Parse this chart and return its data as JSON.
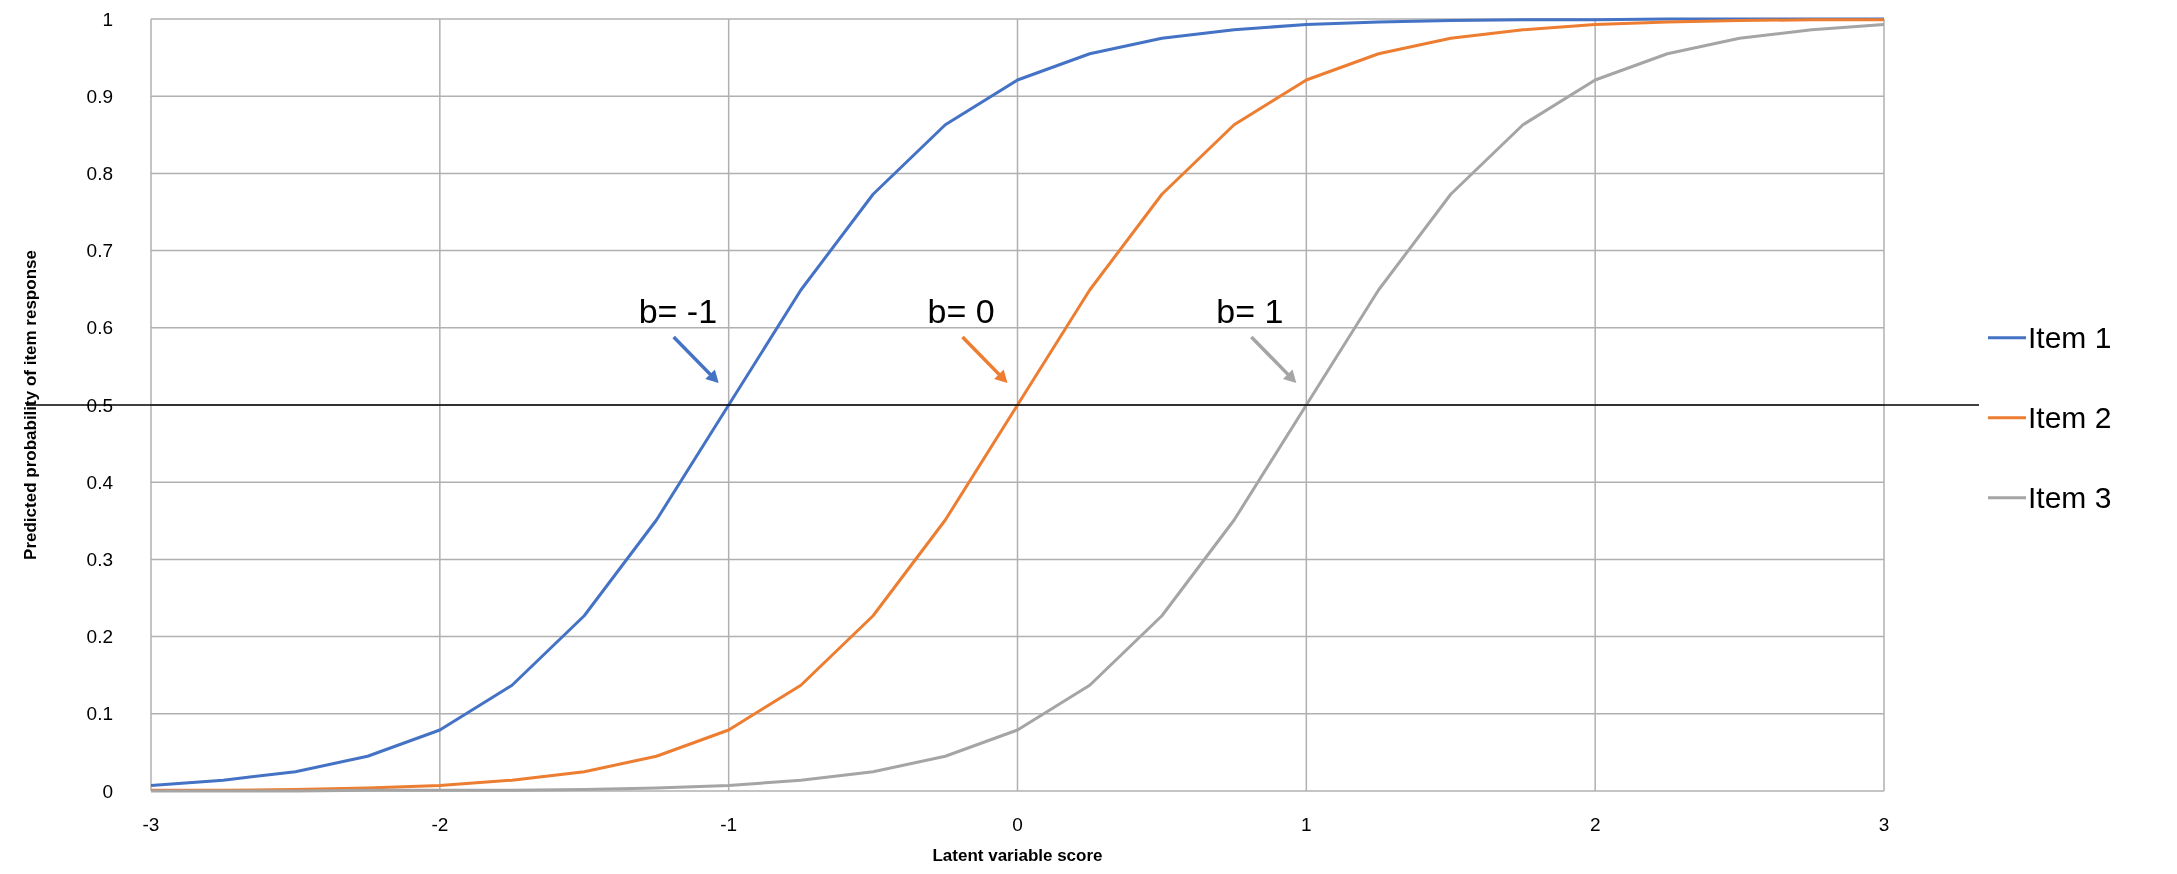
{
  "chart_data": {
    "type": "line",
    "xlabel": "Latent variable score",
    "ylabel": "Predicted probability of item response",
    "x": [
      -3,
      -2.75,
      -2.5,
      -2.25,
      -2,
      -1.75,
      -1.5,
      -1.25,
      -1,
      -0.75,
      -0.5,
      -0.25,
      0,
      0.25,
      0.5,
      0.75,
      1,
      1.25,
      1.5,
      1.75,
      2,
      2.25,
      2.5,
      2.75,
      3
    ],
    "series": [
      {
        "name": "Item 1",
        "color": "#4472c4",
        "values": [
          0.007,
          0.014,
          0.025,
          0.045,
          0.079,
          0.137,
          0.227,
          0.351,
          0.5,
          0.649,
          0.773,
          0.863,
          0.921,
          0.955,
          0.975,
          0.986,
          0.993,
          0.996,
          0.998,
          0.999,
          0.999,
          1,
          1,
          1,
          1
        ]
      },
      {
        "name": "Item 2",
        "color": "#ed7d31",
        "values": [
          0.001,
          0.001,
          0.002,
          0.004,
          0.007,
          0.014,
          0.025,
          0.045,
          0.079,
          0.137,
          0.227,
          0.351,
          0.5,
          0.649,
          0.773,
          0.863,
          0.921,
          0.955,
          0.975,
          0.986,
          0.993,
          0.996,
          0.998,
          0.999,
          0.999
        ]
      },
      {
        "name": "Item 3",
        "color": "#a5a5a5",
        "values": [
          0,
          0,
          0,
          0.001,
          0.001,
          0.001,
          0.002,
          0.004,
          0.007,
          0.014,
          0.025,
          0.045,
          0.079,
          0.137,
          0.227,
          0.351,
          0.5,
          0.649,
          0.773,
          0.863,
          0.921,
          0.955,
          0.975,
          0.986,
          0.993
        ]
      }
    ],
    "xlim": [
      -3,
      3
    ],
    "xticks": [
      -3,
      -2,
      -1,
      0,
      1,
      2,
      3
    ],
    "ylim": [
      0,
      1
    ],
    "yticks": [
      0,
      0.1,
      0.2,
      0.3,
      0.4,
      0.5,
      0.6,
      0.7,
      0.8,
      0.9,
      1
    ],
    "grid": true,
    "legend": "right",
    "line_style": "solid",
    "marker": "none",
    "ref_lines": [
      {
        "axis": "y",
        "value": 0.5,
        "color": "#000000"
      }
    ],
    "annotations": [
      {
        "text": "b= -1",
        "x": -1,
        "y": 0.5
      },
      {
        "text": "b= 0",
        "x": 0,
        "y": 0.5
      },
      {
        "text": "b= 1",
        "x": 1,
        "y": 0.5
      }
    ]
  }
}
